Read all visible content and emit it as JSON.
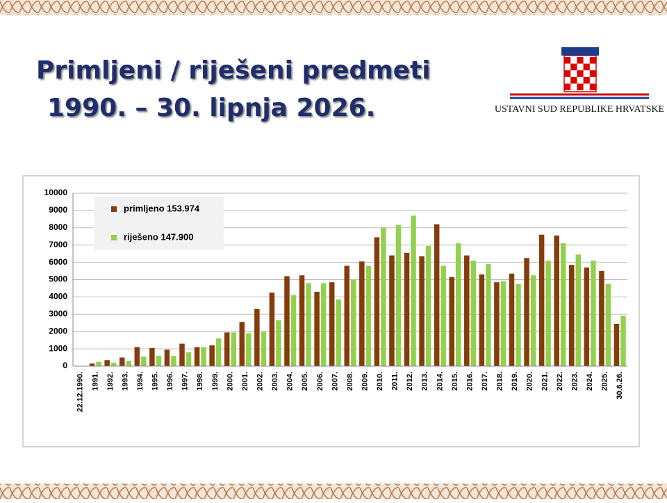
{
  "title": [
    "Primljeni / riješeni predmeti",
    "1990. – 30. lipnja 2026."
  ],
  "logo_text": "USTAVNI SUD REPUBLIKE HRVATSKE",
  "chart_data": {
    "type": "bar",
    "categories": [
      "22.12.1990.",
      "1991.",
      "1992.",
      "1993.",
      "1994.",
      "1995.",
      "1996.",
      "1997.",
      "1998.",
      "1999.",
      "2000.",
      "2001.",
      "2002.",
      "2003.",
      "2004.",
      "2005.",
      "2006.",
      "2007.",
      "2008.",
      "2009.",
      "2010.",
      "2011.",
      "2012.",
      "2013.",
      "2014.",
      "2015.",
      "2016.",
      "2017.",
      "2018.",
      "2019.",
      "2020.",
      "2021.",
      "2022.",
      "2023.",
      "2024.",
      "2025.",
      "30.6.26."
    ],
    "series": [
      {
        "name": "primljeno 153.974",
        "color": "#843c0c",
        "values": [
          0,
          150,
          350,
          500,
          1100,
          1050,
          950,
          1300,
          1100,
          1200,
          1950,
          2550,
          3300,
          4250,
          5200,
          5250,
          4300,
          4850,
          5800,
          6050,
          7450,
          6400,
          6550,
          6350,
          8200,
          5150,
          6400,
          5300,
          4850,
          5350,
          6250,
          7600,
          7550,
          5850,
          5700,
          5500,
          2450
        ]
      },
      {
        "name": "riješeno 147.900",
        "color": "#92d050",
        "values": [
          0,
          250,
          200,
          300,
          550,
          600,
          600,
          800,
          1100,
          1600,
          1950,
          1900,
          2000,
          2650,
          4100,
          4800,
          4800,
          3850,
          5000,
          5800,
          8000,
          8150,
          8700,
          6950,
          5800,
          7100,
          6100,
          5900,
          4900,
          4750,
          5250,
          6100,
          7100,
          6450,
          6100,
          4750,
          2900
        ]
      }
    ],
    "ylim": [
      0,
      10000
    ],
    "yticks": [
      0,
      1000,
      2000,
      3000,
      4000,
      5000,
      6000,
      7000,
      8000,
      9000,
      10000
    ],
    "grid": true,
    "legend": "top-left"
  }
}
